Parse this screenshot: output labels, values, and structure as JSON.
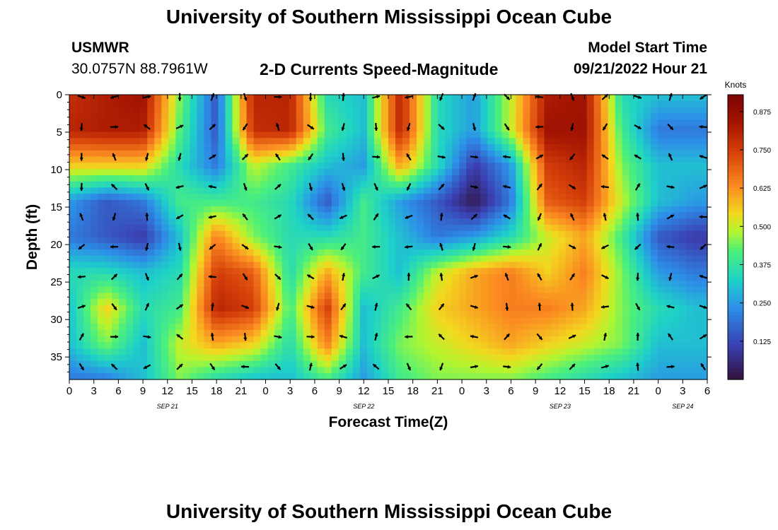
{
  "header": {
    "title": "University of Southern Mississippi Ocean Cube",
    "station": "USMWR",
    "coords": "30.0757N  88.7961W",
    "subtitle": "2-D Currents Speed-Magnitude",
    "model_label": "Model Start Time",
    "model_time": "09/21/2022 Hour 21"
  },
  "footer": {
    "title": "University of Southern Mississippi Ocean Cube"
  },
  "chart_data": {
    "type": "heatmap",
    "title": "2-D Currents Speed-Magnitude",
    "xlabel": "Forecast Time(Z)",
    "ylabel": "Depth (ft)",
    "x_range_hours": [
      0,
      78
    ],
    "y_range_ft": [
      0,
      38
    ],
    "x_tick_labels": [
      "0",
      "3",
      "6",
      "9",
      "12",
      "15",
      "18",
      "21",
      "0",
      "3",
      "6",
      "9",
      "12",
      "15",
      "18",
      "21",
      "0",
      "3",
      "6",
      "9",
      "12",
      "15",
      "18",
      "21",
      "0",
      "3",
      "6"
    ],
    "date_labels": [
      {
        "label": "SEP 21",
        "hour": 12
      },
      {
        "label": "SEP 22",
        "hour": 36
      },
      {
        "label": "SEP 23",
        "hour": 60
      },
      {
        "label": "SEP 24",
        "hour": 75
      }
    ],
    "y_ticks": [
      0,
      5,
      10,
      15,
      20,
      25,
      30,
      35
    ],
    "colorbar": {
      "label": "Knots",
      "min": 0.0,
      "max": 0.93,
      "ticks": [
        "0.125",
        "0.250",
        "0.375",
        "0.500",
        "0.625",
        "0.750",
        "0.875"
      ]
    },
    "column_hours": [
      0,
      4.5,
      9,
      13.5,
      18,
      22.5,
      27,
      31.5,
      36,
      40.5,
      45,
      49.5,
      54,
      58.5,
      63,
      67.5,
      72,
      76.5
    ],
    "row_depths_ft": [
      0.0,
      4.75,
      9.5,
      14.25,
      19.0,
      23.75,
      28.5,
      33.25,
      38.0
    ],
    "speed_grid_knots": [
      [
        0.78,
        0.82,
        0.85,
        0.45,
        0.15,
        0.8,
        0.8,
        0.35,
        0.3,
        0.8,
        0.35,
        0.25,
        0.5,
        0.82,
        0.85,
        0.35,
        0.3,
        0.3
      ],
      [
        0.8,
        0.82,
        0.82,
        0.42,
        0.15,
        0.78,
        0.8,
        0.4,
        0.3,
        0.8,
        0.35,
        0.25,
        0.5,
        0.85,
        0.85,
        0.4,
        0.2,
        0.2
      ],
      [
        0.55,
        0.55,
        0.55,
        0.35,
        0.2,
        0.5,
        0.4,
        0.3,
        0.25,
        0.6,
        0.35,
        0.1,
        0.25,
        0.75,
        0.8,
        0.45,
        0.3,
        0.3
      ],
      [
        0.25,
        0.15,
        0.2,
        0.4,
        0.4,
        0.4,
        0.35,
        0.15,
        0.4,
        0.25,
        0.15,
        0.02,
        0.2,
        0.7,
        0.75,
        0.5,
        0.3,
        0.25
      ],
      [
        0.2,
        0.15,
        0.1,
        0.3,
        0.65,
        0.45,
        0.35,
        0.35,
        0.4,
        0.3,
        0.2,
        0.25,
        0.35,
        0.5,
        0.6,
        0.4,
        0.15,
        0.1
      ],
      [
        0.35,
        0.35,
        0.3,
        0.35,
        0.75,
        0.7,
        0.35,
        0.6,
        0.4,
        0.3,
        0.5,
        0.6,
        0.65,
        0.55,
        0.65,
        0.45,
        0.25,
        0.2
      ],
      [
        0.3,
        0.55,
        0.35,
        0.4,
        0.8,
        0.75,
        0.4,
        0.75,
        0.3,
        0.4,
        0.55,
        0.6,
        0.65,
        0.65,
        0.6,
        0.45,
        0.35,
        0.3
      ],
      [
        0.3,
        0.45,
        0.3,
        0.5,
        0.6,
        0.55,
        0.35,
        0.65,
        0.3,
        0.45,
        0.5,
        0.55,
        0.6,
        0.55,
        0.5,
        0.45,
        0.3,
        0.3
      ],
      [
        0.2,
        0.2,
        0.3,
        0.45,
        0.35,
        0.3,
        0.3,
        0.4,
        0.25,
        0.4,
        0.45,
        0.45,
        0.45,
        0.4,
        0.35,
        0.3,
        0.25,
        0.25
      ]
    ],
    "vector_hours": [
      0,
      4,
      8,
      12,
      16,
      20,
      24,
      28,
      32,
      36,
      40,
      44,
      48,
      52,
      56,
      60,
      64,
      68,
      72,
      76
    ],
    "vector_depths_ft": [
      0,
      4,
      8,
      12,
      16,
      20,
      24,
      28,
      32,
      36
    ],
    "vector_direction_deg_seed": 21
  }
}
